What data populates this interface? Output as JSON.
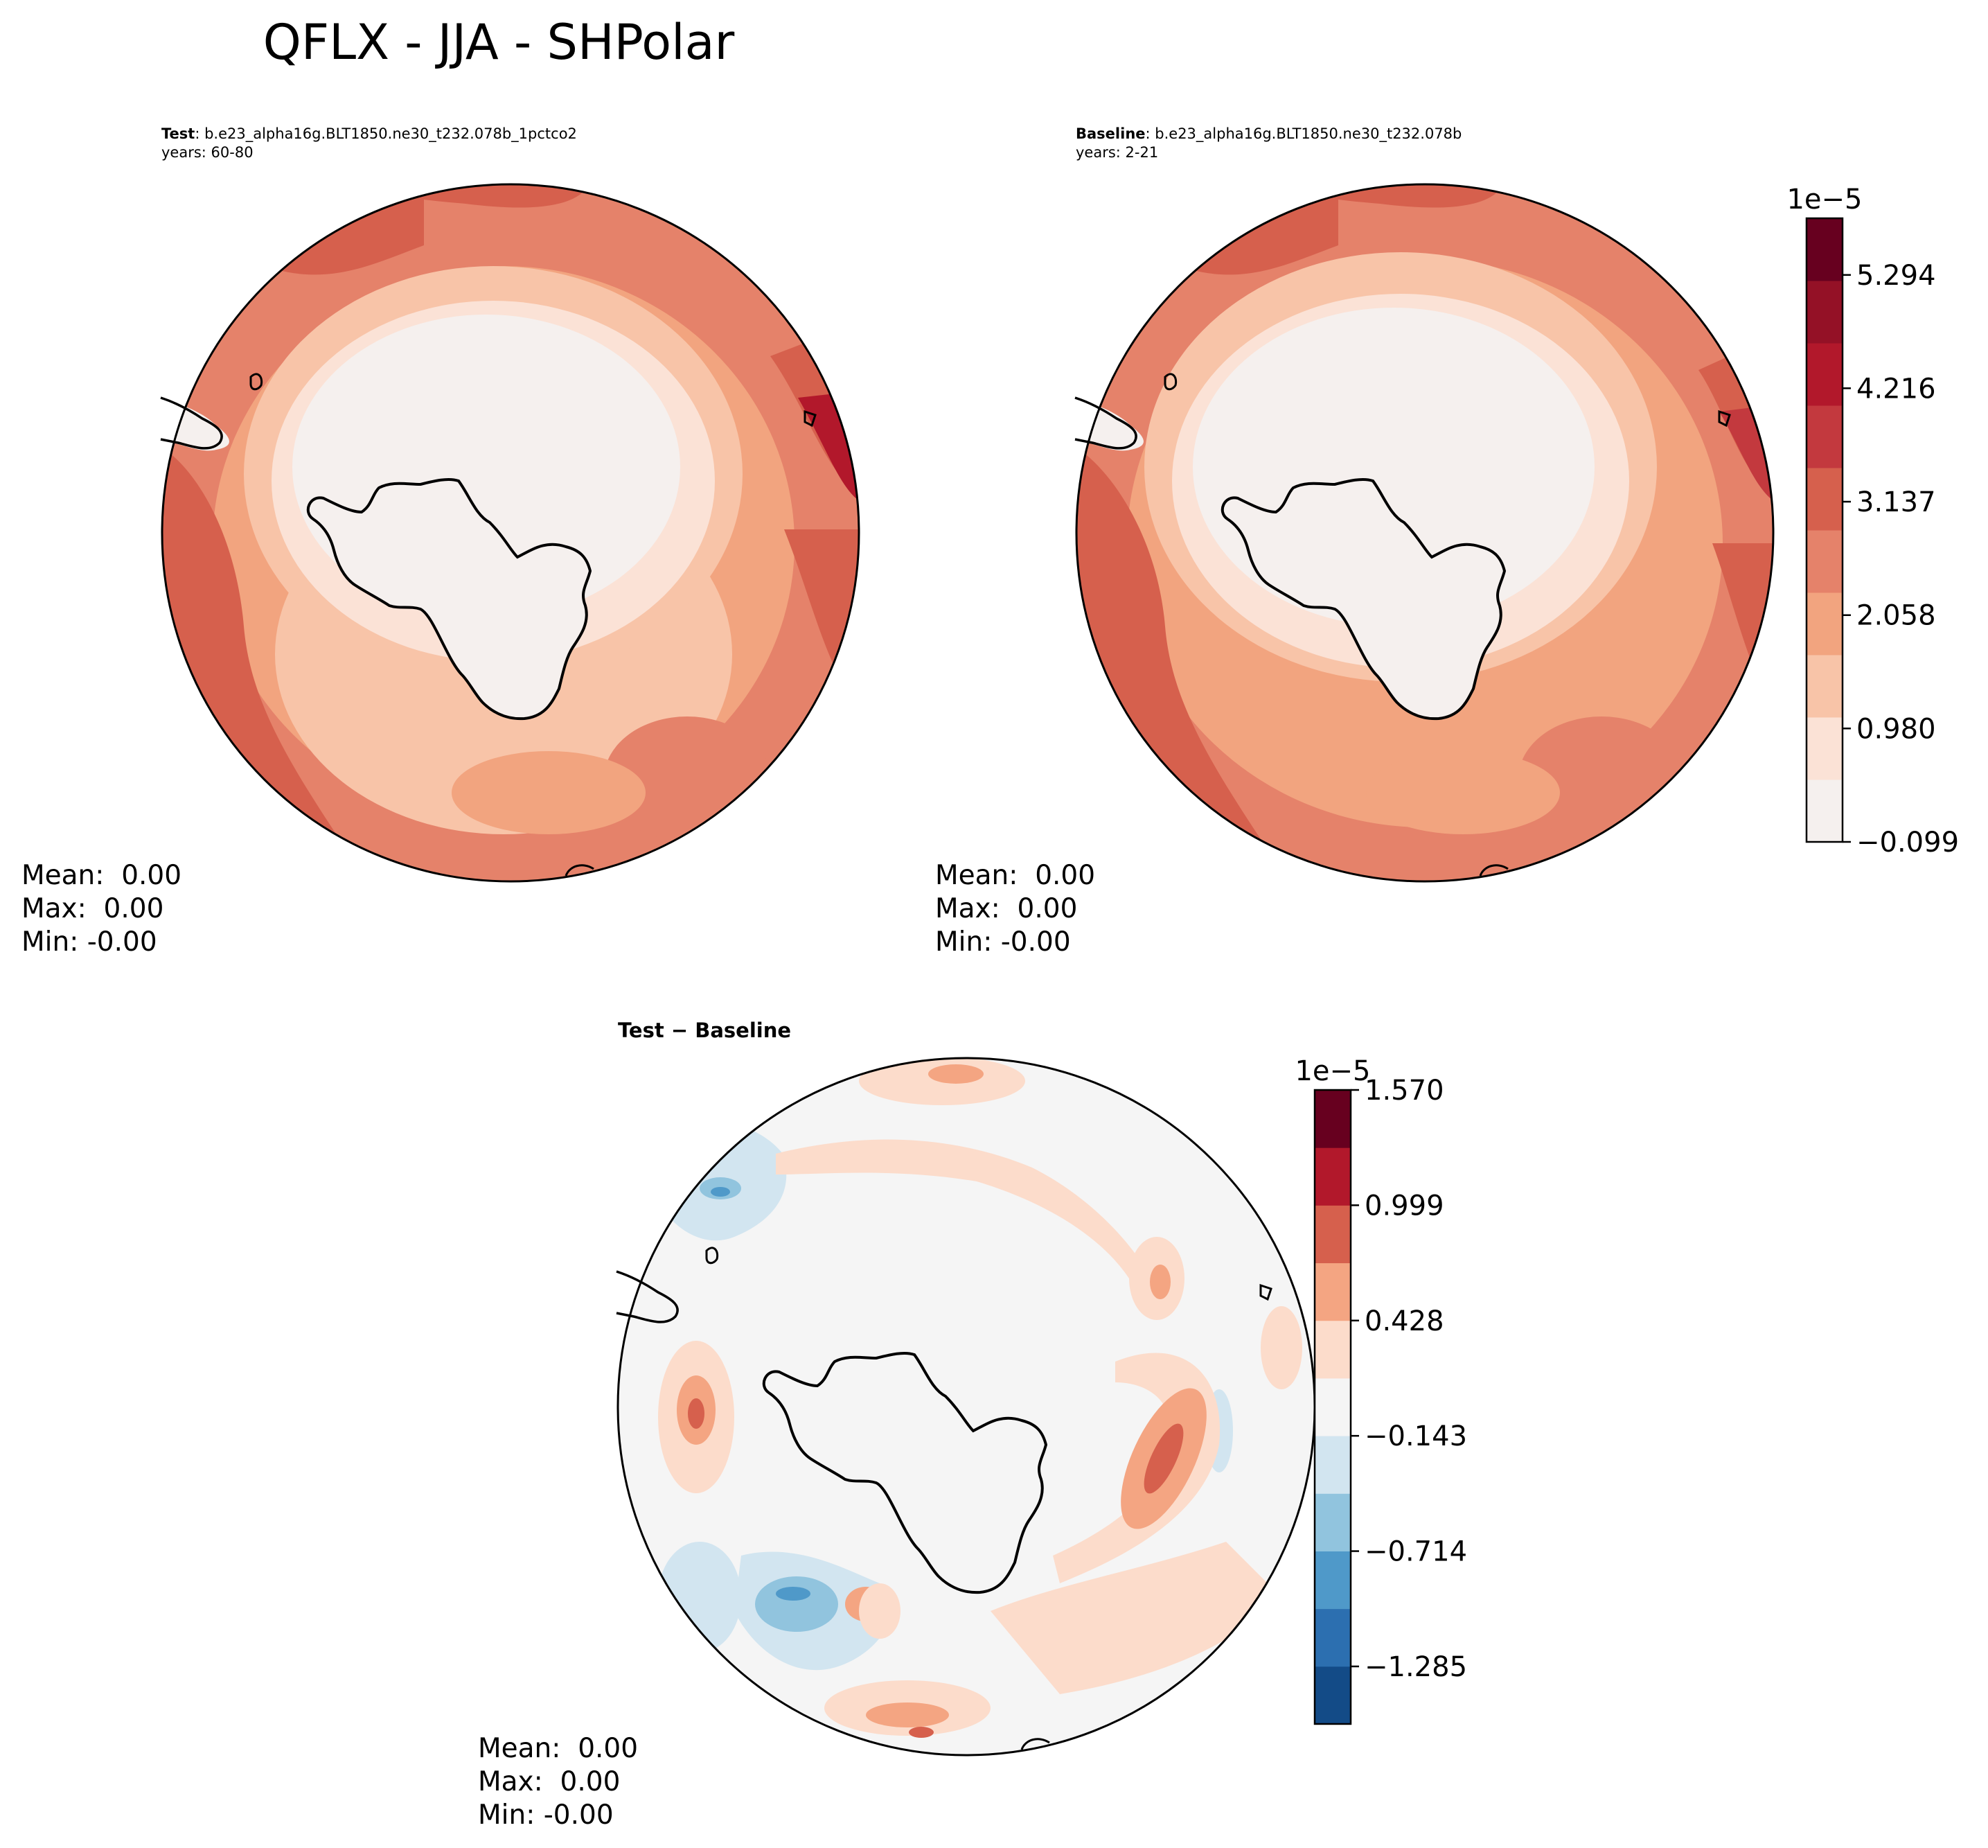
{
  "figure": {
    "title": "QFLX - JJA - SHPolar"
  },
  "panels": {
    "test": {
      "label_bold": "Test",
      "label_rest": ": b.e23_alpha16g.BLT1850.ne30_t232.078b_1pctco2",
      "years": "years: 60-80",
      "stats": {
        "mean": "Mean:  0.00",
        "max": "Max:  0.00",
        "min": "Min: -0.00"
      }
    },
    "baseline": {
      "label_bold": "Baseline",
      "label_rest": ": b.e23_alpha16g.BLT1850.ne30_t232.078b",
      "years": "years: 2-21",
      "stats": {
        "mean": "Mean:  0.00",
        "max": "Max:  0.00",
        "min": "Min: -0.00"
      }
    },
    "difference": {
      "title": "Test − Baseline",
      "stats": {
        "mean": "Mean:  0.00",
        "max": "Max:  0.00",
        "min": "Min: -0.00"
      }
    }
  },
  "colorbars": {
    "main": {
      "offset": "1e−5",
      "ticks": [
        "5.294",
        "4.216",
        "3.137",
        "2.058",
        "0.980",
        "−0.099"
      ],
      "tick_values": [
        5.294,
        4.216,
        3.137,
        2.058,
        0.98,
        -0.099
      ],
      "range": [
        -0.099,
        5.833
      ],
      "colors": [
        "#f5f0ee",
        "#fbe2d6",
        "#f8c4a8",
        "#f2a47f",
        "#e5826a",
        "#d6604d",
        "#c3393e",
        "#b2182b",
        "#941126",
        "#67001f"
      ]
    },
    "diff": {
      "offset": "1e−5",
      "ticks": [
        "1.570",
        "0.999",
        "0.428",
        "−0.143",
        "−0.714",
        "−1.285"
      ],
      "tick_values": [
        1.57,
        0.999,
        0.428,
        -0.143,
        -0.714,
        -1.285
      ],
      "range": [
        -1.57,
        1.57
      ],
      "colors": [
        "#134b87",
        "#2c6fb0",
        "#4f99c9",
        "#91c4de",
        "#d2e5f0",
        "#f5f5f5",
        "#fcdccb",
        "#f4a582",
        "#d6604d",
        "#b2182b",
        "#67001f"
      ]
    }
  }
}
